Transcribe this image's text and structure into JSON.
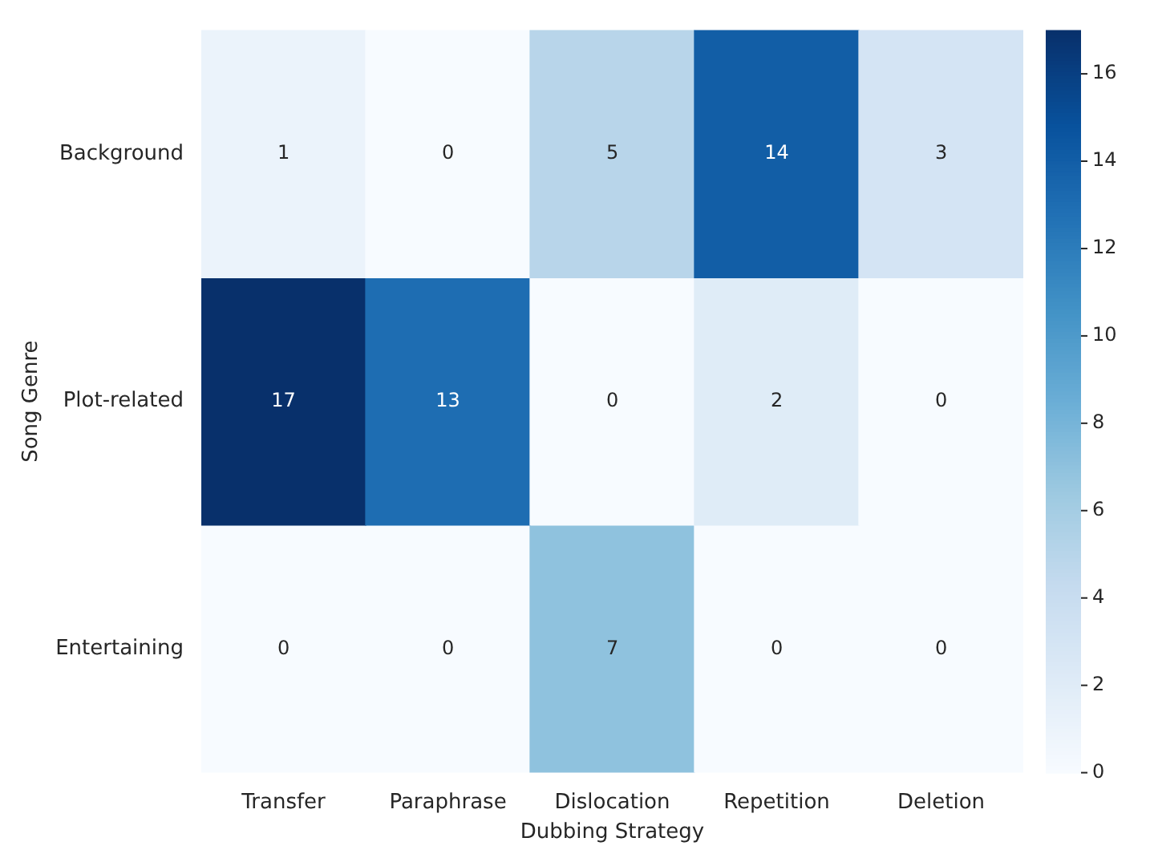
{
  "chart_data": {
    "type": "heatmap",
    "xlabel": "Dubbing Strategy",
    "ylabel": "Song Genre",
    "categories": [
      "Transfer",
      "Paraphrase",
      "Dislocation",
      "Repetition",
      "Deletion"
    ],
    "y_categories": [
      "Background",
      "Plot-related",
      "Entertaining"
    ],
    "cells": [
      [
        1,
        0,
        5,
        14,
        3
      ],
      [
        17,
        13,
        0,
        2,
        0
      ],
      [
        0,
        0,
        7,
        0,
        0
      ]
    ],
    "clim": [
      0,
      17
    ],
    "cticks": [
      0,
      2,
      4,
      6,
      8,
      10,
      12,
      14,
      16
    ],
    "data_labels": true
  }
}
